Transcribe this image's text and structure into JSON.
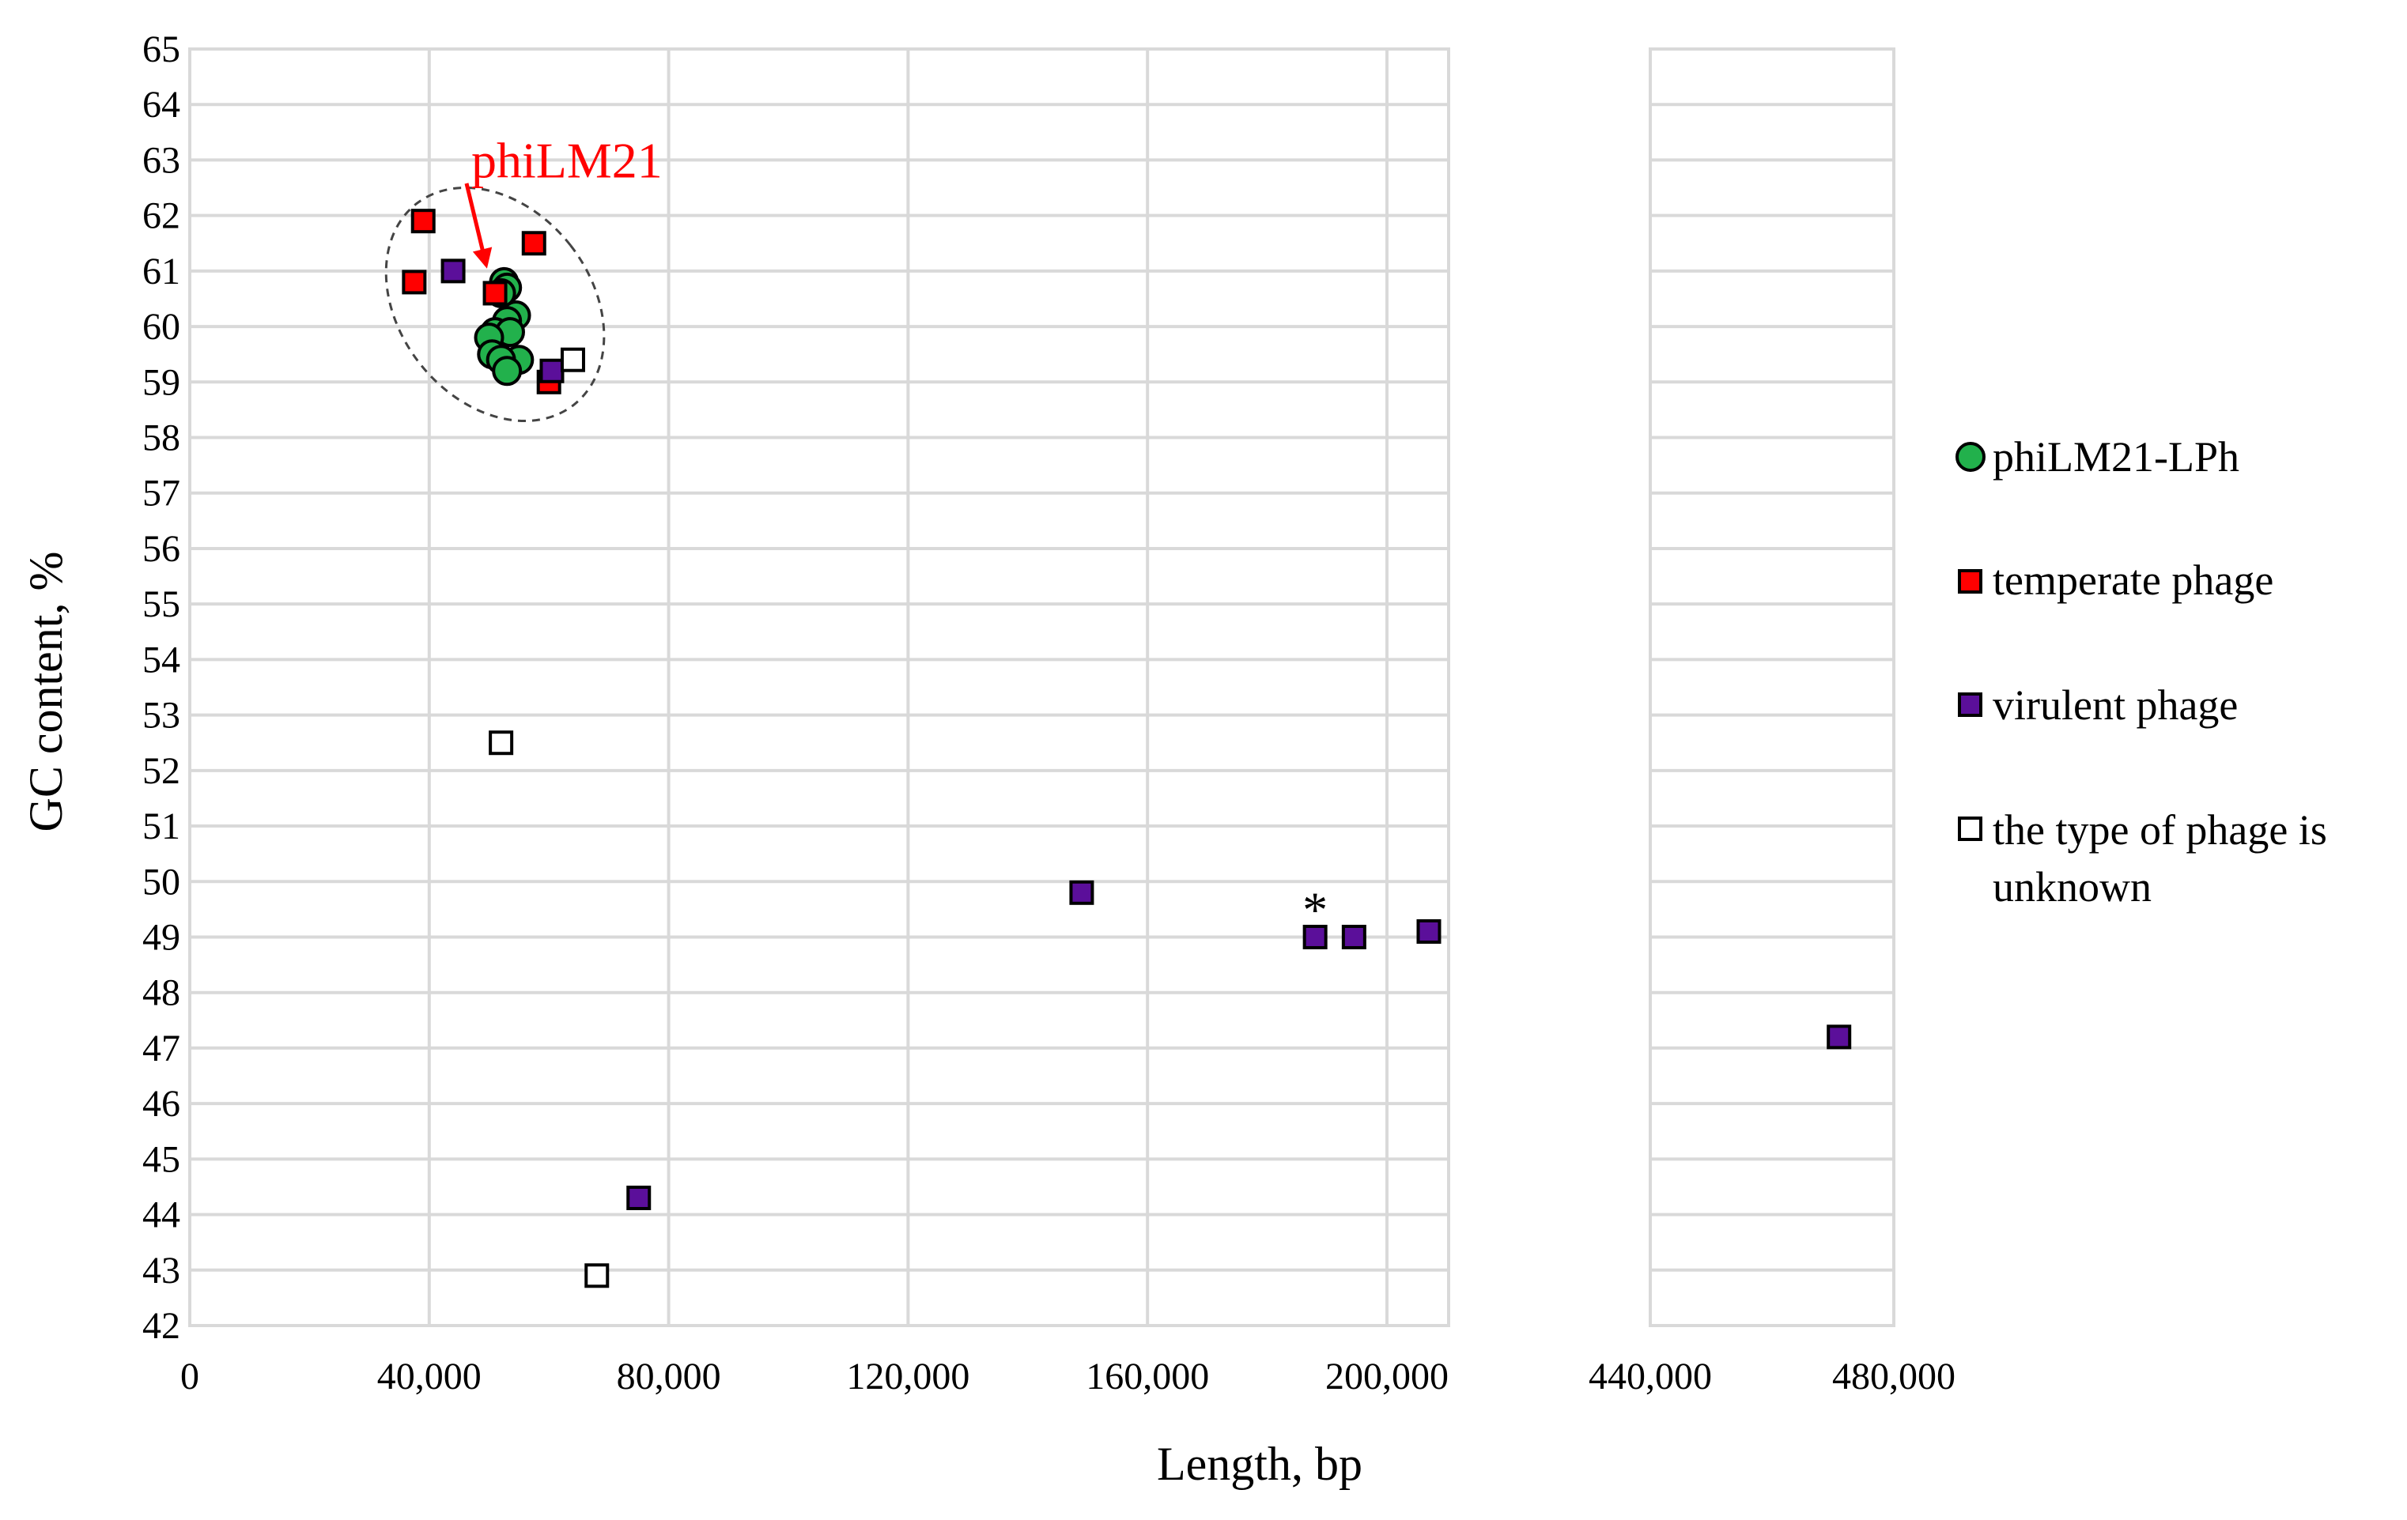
{
  "chart_data": {
    "type": "scatter",
    "title": "",
    "xlabel": "Length, bp",
    "ylabel": "GC content, %",
    "x_axis_break": true,
    "panels": [
      {
        "xlim": [
          0,
          210000
        ],
        "x_ticks": [
          0,
          40000,
          80000,
          120000,
          160000,
          200000
        ],
        "x_tick_labels": [
          "0",
          "40,000",
          "80,000",
          "120,000",
          "160,000",
          "200,000"
        ]
      },
      {
        "xlim": [
          440000,
          480000
        ],
        "x_ticks": [
          440000,
          480000
        ],
        "x_tick_labels": [
          "440,000",
          "480,000"
        ]
      }
    ],
    "ylim": [
      42,
      65
    ],
    "y_ticks": [
      42,
      43,
      44,
      45,
      46,
      47,
      48,
      49,
      50,
      51,
      52,
      53,
      54,
      55,
      56,
      57,
      58,
      59,
      60,
      61,
      62,
      63,
      64,
      65
    ],
    "grid": true,
    "legend_position": "right",
    "series": [
      {
        "name": "phiLM21-LPh",
        "marker": "circle",
        "fill": "#22b14c",
        "stroke": "#000000",
        "points": [
          [
            52500,
            60.8
          ],
          [
            53000,
            60.7
          ],
          [
            52000,
            60.6
          ],
          [
            54500,
            60.2
          ],
          [
            53000,
            60.1
          ],
          [
            51000,
            59.9
          ],
          [
            53500,
            59.9
          ],
          [
            50000,
            59.8
          ],
          [
            55000,
            59.4
          ],
          [
            50500,
            59.5
          ],
          [
            52000,
            59.4
          ],
          [
            53000,
            59.2
          ]
        ]
      },
      {
        "name": "temperate phage",
        "marker": "square",
        "fill": "#ff0000",
        "stroke": "#000000",
        "points": [
          [
            39000,
            61.9
          ],
          [
            37500,
            60.8
          ],
          [
            57500,
            61.5
          ],
          [
            51000,
            60.6
          ],
          [
            60000,
            59.0
          ]
        ]
      },
      {
        "name": "virulent phage",
        "marker": "square",
        "fill": "#5b0f9a",
        "stroke": "#000000",
        "points": [
          [
            44000,
            61.0
          ],
          [
            60500,
            59.2
          ],
          [
            149000,
            49.8
          ],
          [
            188000,
            49.0
          ],
          [
            194500,
            49.0
          ],
          [
            207000,
            49.1
          ],
          [
            75000,
            44.3
          ],
          [
            471000,
            47.2
          ]
        ]
      },
      {
        "name": "the type of phage is unknown",
        "marker": "square",
        "fill": "#ffffff",
        "stroke": "#000000",
        "points": [
          [
            64000,
            59.4
          ],
          [
            52000,
            52.5
          ],
          [
            68000,
            42.9
          ]
        ]
      }
    ],
    "annotations": [
      {
        "text": "phiLM21",
        "color": "#ff0000",
        "x": 63000,
        "y": 63.0,
        "arrow_to": [
          49500,
          61.0
        ]
      },
      {
        "text": "*",
        "color": "#000000",
        "x": 188000,
        "y": 49.5
      }
    ],
    "highlight_region": {
      "shape": "dashed-ellipse",
      "center": [
        51000,
        60.4
      ],
      "radius_x_bp": 16000,
      "radius_y_pct": 2.3
    }
  },
  "legend_lines": {
    "philm21": [
      "phiLM21-LPh"
    ],
    "temperate": [
      "temperate phage"
    ],
    "virulent": [
      "virulent phage"
    ],
    "unknown": [
      "the type of phage is",
      "unknown"
    ]
  },
  "colors": {
    "grid": "#d9d9d9",
    "circle_fill": "#22b14c",
    "temperate_fill": "#ff0000",
    "virulent_fill": "#5b0f9a",
    "annotation": "#ff0000"
  },
  "icons": {
    "philm21": "green-circle-marker",
    "temperate": "red-square-marker",
    "virulent": "purple-square-marker",
    "unknown": "white-square-marker"
  }
}
